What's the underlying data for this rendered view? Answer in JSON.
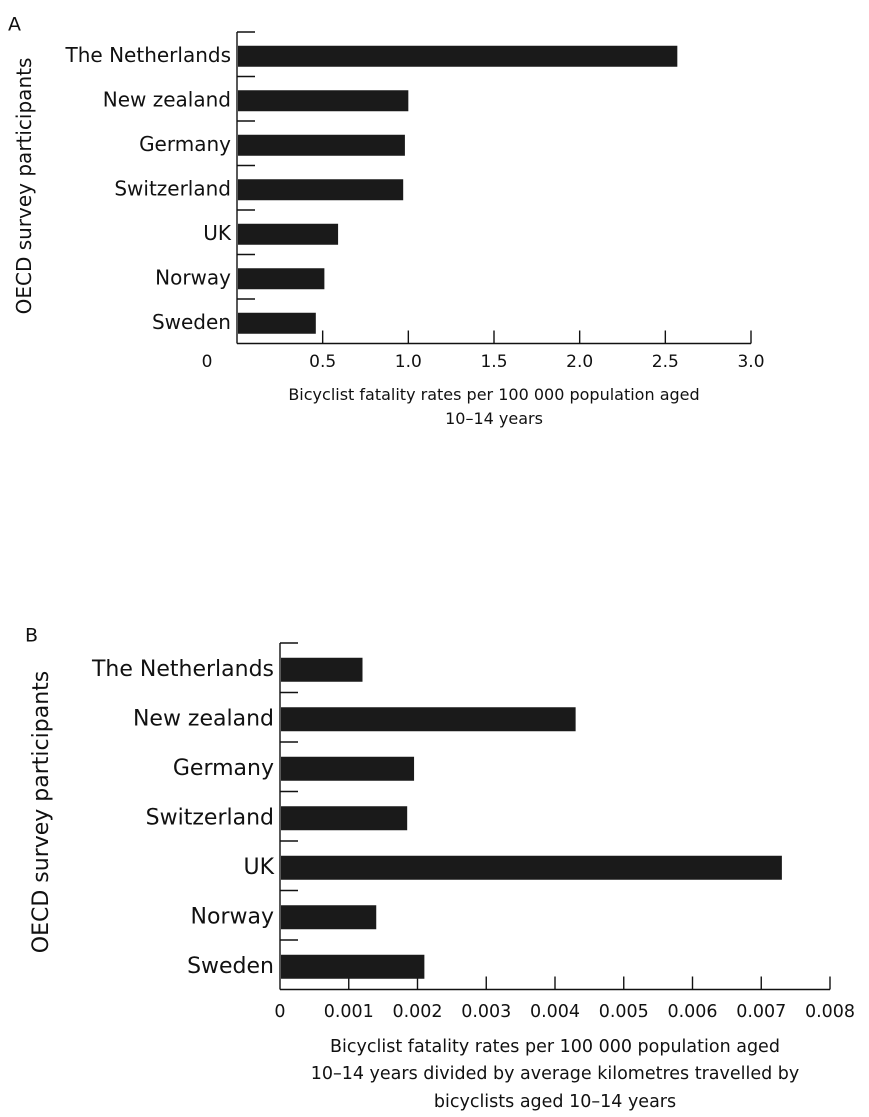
{
  "chart_data": [
    {
      "panel_label": "A",
      "type": "bar",
      "orientation": "horizontal",
      "categories": [
        "The Netherlands",
        "New zealand",
        "Germany",
        "Switzerland",
        "UK",
        "Norway",
        "Sweden"
      ],
      "values": [
        2.57,
        1.0,
        0.98,
        0.97,
        0.59,
        0.51,
        0.46
      ],
      "xlim": [
        0,
        3.0
      ],
      "x_ticks": [
        "0",
        "0.5",
        "1.0",
        "1.5",
        "2.0",
        "2.5",
        "3.0"
      ],
      "xlabel": [
        "Bicyclist fatality rates per 100 000 population aged",
        "10–14 years"
      ],
      "ylabel": "OECD survey participants",
      "grid": false,
      "bar_color": "#1a1a1a"
    },
    {
      "panel_label": "B",
      "type": "bar",
      "orientation": "horizontal",
      "categories": [
        "The Netherlands",
        "New zealand",
        "Germany",
        "Switzerland",
        "UK",
        "Norway",
        "Sweden"
      ],
      "values": [
        0.0012,
        0.0043,
        0.00195,
        0.00185,
        0.0073,
        0.0014,
        0.0021
      ],
      "xlim": [
        0,
        0.008
      ],
      "x_ticks": [
        "0",
        "0.001",
        "0.002",
        "0.003",
        "0.004",
        "0.005",
        "0.006",
        "0.007",
        "0.008"
      ],
      "xlabel": [
        "Bicyclist fatality rates per 100 000 population aged",
        "10–14 years divided by average kilometres travelled by",
        "bicyclists aged 10–14 years"
      ],
      "ylabel": "OECD survey participants",
      "grid": false,
      "bar_color": "#1a1a1a"
    }
  ]
}
